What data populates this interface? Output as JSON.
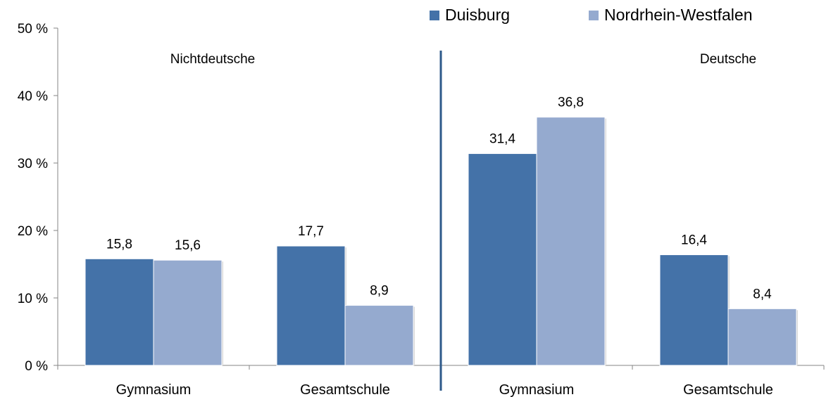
{
  "chart_data": {
    "type": "bar",
    "categories": [
      "Gymnasium",
      "Gesamtschule",
      "Gymnasium",
      "Gesamtschule"
    ],
    "groups": [
      {
        "label": "Nichtdeutsche",
        "categories": [
          0,
          1
        ]
      },
      {
        "label": "Deutsche",
        "categories": [
          2,
          3
        ]
      }
    ],
    "series": [
      {
        "name": "Duisburg",
        "values": [
          15.8,
          17.7,
          31.4,
          16.4
        ],
        "labels": [
          "15,8",
          "17,7",
          "31,4",
          "16,4"
        ],
        "color": "#4472A8"
      },
      {
        "name": "Nordrhein-Westfalen",
        "values": [
          15.6,
          8.9,
          36.8,
          8.4
        ],
        "labels": [
          "15,6",
          "8,9",
          "36,8",
          "8,4"
        ],
        "color": "#95AACF"
      }
    ],
    "ylim": [
      0,
      50
    ],
    "yticks": [
      0,
      10,
      20,
      30,
      40,
      50
    ],
    "ytick_labels": [
      "0 %",
      "10 %",
      "20 %",
      "30 %",
      "40 %",
      "50 %"
    ],
    "grid": false,
    "legend_position": "top-right",
    "separator_color": "#2E5A8A"
  }
}
